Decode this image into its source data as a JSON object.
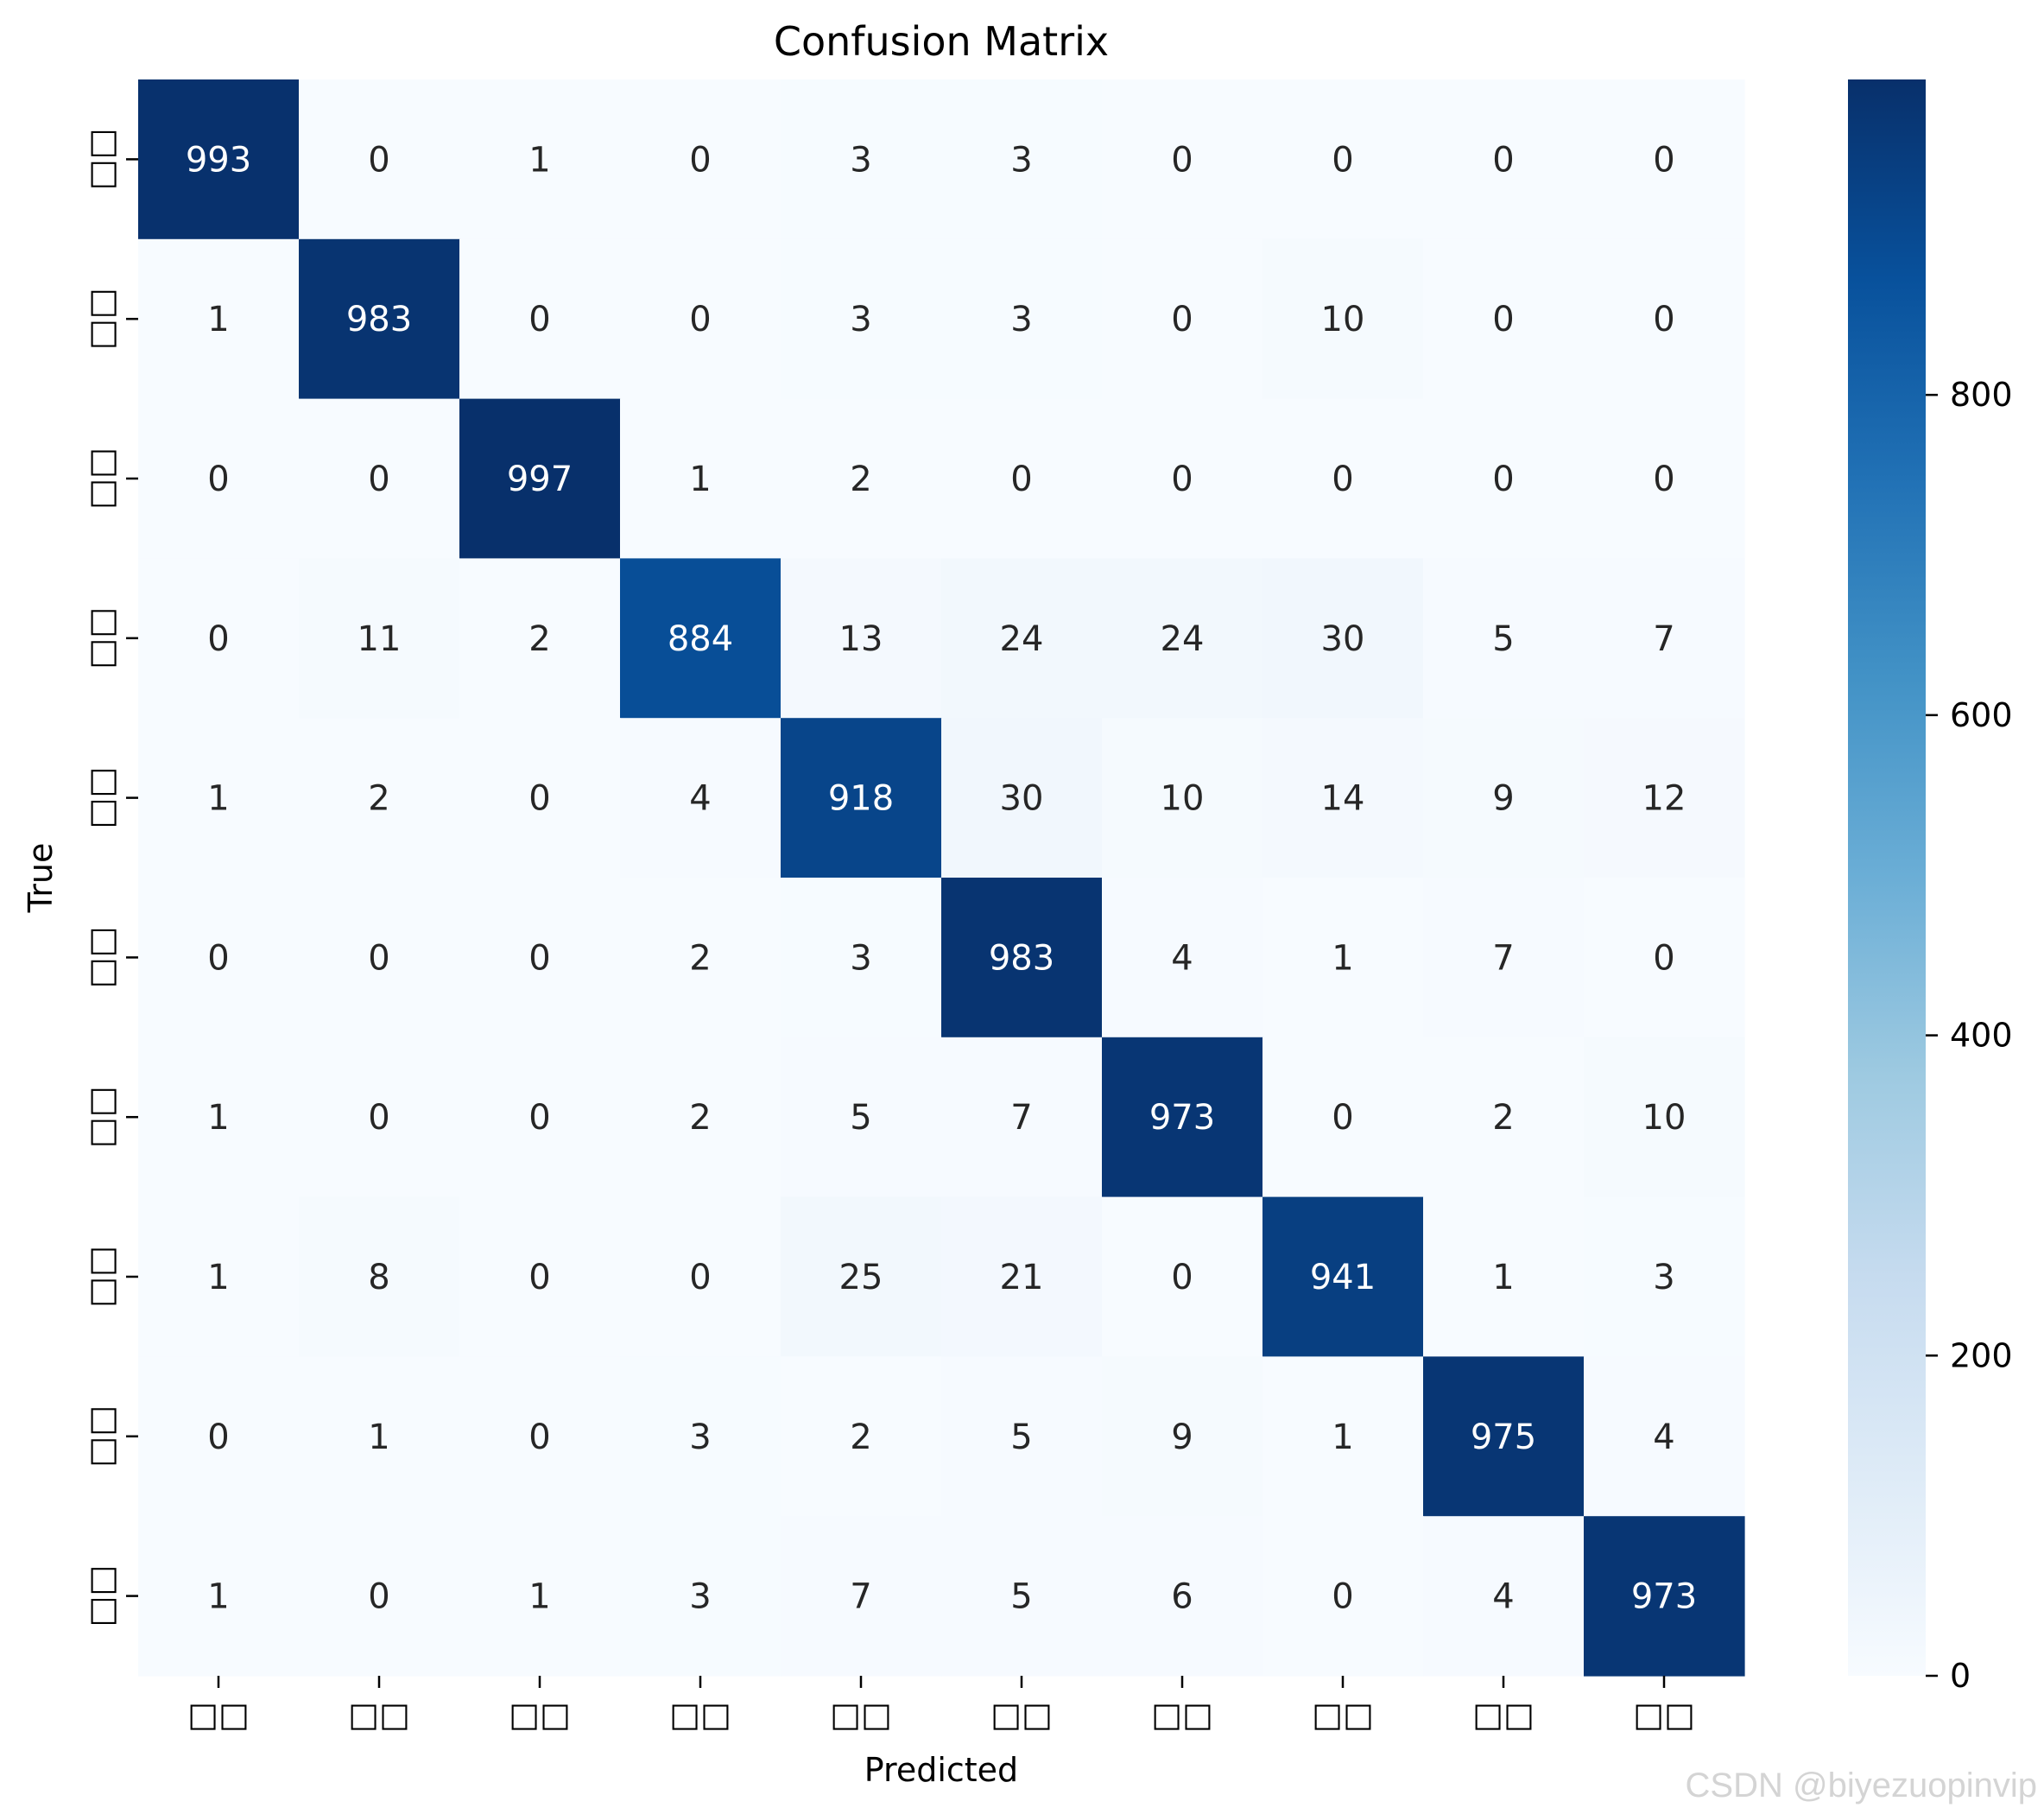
{
  "chart_data": {
    "type": "heatmap",
    "title": "Confusion Matrix",
    "xlabel": "Predicted",
    "ylabel": "True",
    "x_tick_labels": [
      "□□",
      "□□",
      "□□",
      "□□",
      "□□",
      "□□",
      "□□",
      "□□",
      "□□",
      "□□"
    ],
    "y_tick_labels": [
      "□□",
      "□□",
      "□□",
      "□□",
      "□□",
      "□□",
      "□□",
      "□□",
      "□□",
      "□□"
    ],
    "matrix": [
      [
        993,
        0,
        1,
        0,
        3,
        3,
        0,
        0,
        0,
        0
      ],
      [
        1,
        983,
        0,
        0,
        3,
        3,
        0,
        10,
        0,
        0
      ],
      [
        0,
        0,
        997,
        1,
        2,
        0,
        0,
        0,
        0,
        0
      ],
      [
        0,
        11,
        2,
        884,
        13,
        24,
        24,
        30,
        5,
        7
      ],
      [
        1,
        2,
        0,
        4,
        918,
        30,
        10,
        14,
        9,
        12
      ],
      [
        0,
        0,
        0,
        2,
        3,
        983,
        4,
        1,
        7,
        0
      ],
      [
        1,
        0,
        0,
        2,
        5,
        7,
        973,
        0,
        2,
        10
      ],
      [
        1,
        8,
        0,
        0,
        25,
        21,
        0,
        941,
        1,
        3
      ],
      [
        0,
        1,
        0,
        3,
        2,
        5,
        9,
        1,
        975,
        4
      ],
      [
        1,
        0,
        1,
        3,
        7,
        5,
        6,
        0,
        4,
        973
      ]
    ],
    "colormap": "Blues",
    "value_range": [
      0,
      997
    ],
    "colorbar_ticks": [
      0,
      200,
      400,
      600,
      800
    ],
    "annotations": true,
    "grid": false
  },
  "watermark": "CSDN @biyezuopinvip",
  "colors": {
    "text_dark": "#262626",
    "text_light": "#ffffff",
    "axis": "#000000"
  }
}
